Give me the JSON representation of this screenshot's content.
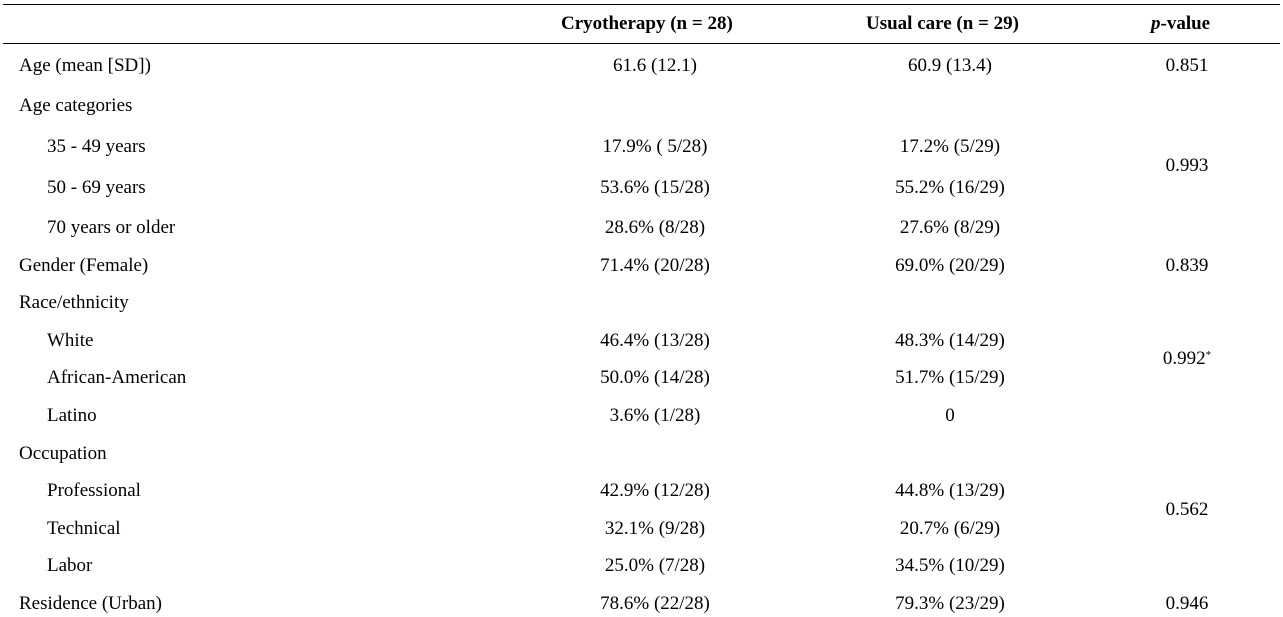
{
  "header": {
    "col1": "Cryotherapy (n = 28)",
    "col2": "Usual care (n = 29)",
    "col3_italic": "p",
    "col3_rest": "-value"
  },
  "rows": [
    {
      "label": "Age (mean [SD])",
      "cryo": "61.6 (12.1)",
      "usual": "60.9 (13.4)",
      "p": "0.851"
    },
    {
      "label": "Age categories"
    },
    {
      "label": "35 - 49 years",
      "cryo": "17.9% ( 5/28)",
      "usual": "17.2% (5/29)"
    },
    {
      "label": "50 - 69 years",
      "cryo": "53.6% (15/28)",
      "usual": "55.2% (16/29)",
      "p": "0.993"
    },
    {
      "label": "70 years or older",
      "cryo": "28.6% (8/28)",
      "usual": "27.6% (8/29)"
    },
    {
      "label": "Gender (Female)",
      "cryo": "71.4% (20/28)",
      "usual": "69.0% (20/29)",
      "p": "0.839"
    },
    {
      "label": "Race/ethnicity"
    },
    {
      "label": "White",
      "cryo": "46.4% (13/28)",
      "usual": "48.3% (14/29)"
    },
    {
      "label": "African-American",
      "cryo": "50.0% (14/28)",
      "usual": "51.7% (15/29)",
      "p": "0.992",
      "p_note": "*"
    },
    {
      "label": "Latino",
      "cryo": "3.6% (1/28)",
      "usual": "0"
    },
    {
      "label": "Occupation"
    },
    {
      "label": "Professional",
      "cryo": "42.9% (12/28)",
      "usual": "44.8% (13/29)"
    },
    {
      "label": "Technical",
      "cryo": "32.1% (9/28)",
      "usual": "20.7% (6/29)",
      "p": "0.562"
    },
    {
      "label": "Labor",
      "cryo": "25.0% (7/28)",
      "usual": "34.5% (10/29)"
    },
    {
      "label": "Residence (Urban)",
      "cryo": "78.6% (22/28)",
      "usual": "79.3% (23/29)",
      "p": "0.946"
    }
  ]
}
